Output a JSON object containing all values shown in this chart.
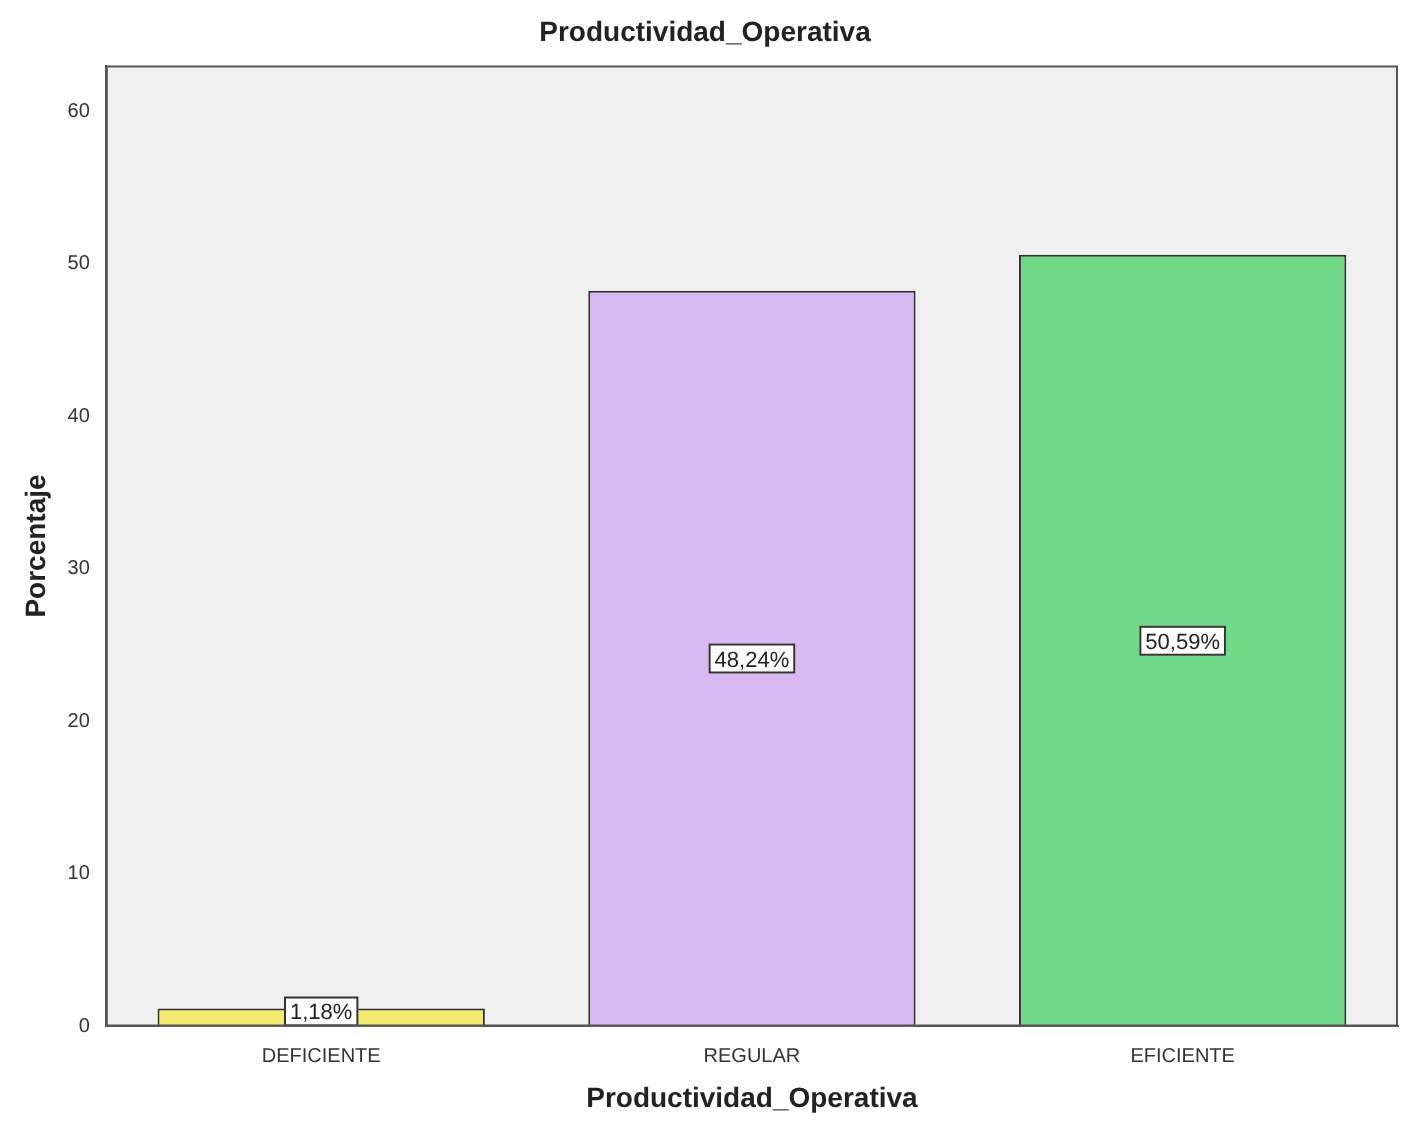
{
  "chart_data": {
    "type": "bar",
    "title": "Productividad_Operativa",
    "xlabel": "Productividad_Operativa",
    "ylabel": "Porcentaje",
    "categories": [
      "DEFICIENTE",
      "REGULAR",
      "EFICIENTE"
    ],
    "values": [
      1.18,
      48.24,
      50.59
    ],
    "colors": [
      "#f2ea6e",
      "#d9b8f0",
      "#6fd987"
    ],
    "value_labels": [
      "1,18%",
      "48,24%",
      "50,59%"
    ],
    "ylim": [
      0,
      63
    ],
    "yticks": [
      0,
      10,
      20,
      30,
      40,
      50,
      60
    ],
    "grid": false,
    "legend": false
  }
}
